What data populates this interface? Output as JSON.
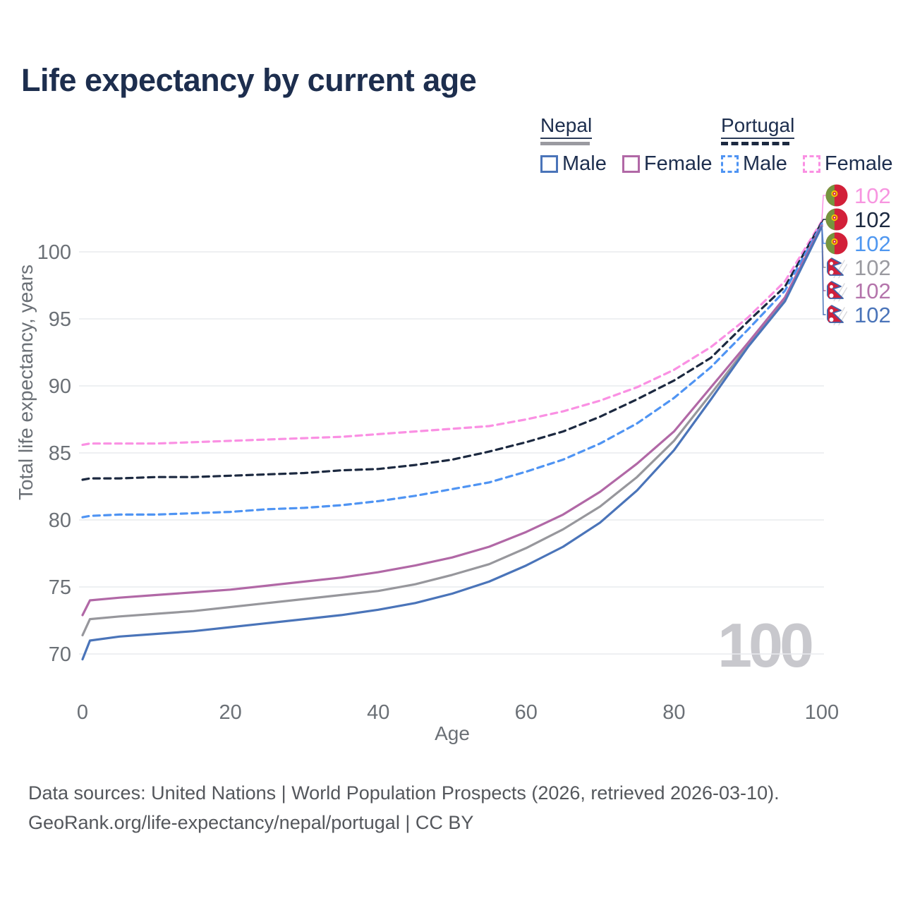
{
  "title": "Life expectancy by current age",
  "legend": {
    "groups": [
      {
        "country": "Nepal",
        "line_style": "solid",
        "swatch_color": "#9a9aa0",
        "male_label": "Male",
        "male_color": "#4a74b9",
        "female_label": "Female",
        "female_color": "#b168a6"
      },
      {
        "country": "Portugal",
        "line_style": "dashed",
        "swatch_color": "#1c2940",
        "male_label": "Male",
        "male_color": "#4f94f3",
        "female_label": "Female",
        "female_color": "#fa90e3"
      }
    ]
  },
  "chart_data": {
    "type": "line",
    "title": "Life expectancy by current age",
    "xlabel": "Age",
    "ylabel": "Total life expectancy, years",
    "x_ticks": [
      0,
      20,
      40,
      60,
      80,
      100
    ],
    "y_ticks": [
      70,
      75,
      80,
      85,
      90,
      95,
      100
    ],
    "xlim": [
      0,
      100
    ],
    "ylim": [
      66,
      103.5
    ],
    "grid": "horizontal",
    "watermark_current_age": "100",
    "axis_text_color": "#6b7076",
    "grid_color": "#e9ebee",
    "watermark_color": "#c8c8cd",
    "series": [
      {
        "name": "Portugal Female",
        "country": "Portugal",
        "sex": "Female",
        "style": "dashed",
        "color": "#fa90e3",
        "label_color": "#f795e0",
        "end_label": "102",
        "flag": "portugal",
        "points": [
          [
            0,
            85.6
          ],
          [
            1,
            85.7
          ],
          [
            5,
            85.7
          ],
          [
            10,
            85.7
          ],
          [
            15,
            85.8
          ],
          [
            20,
            85.9
          ],
          [
            25,
            86.0
          ],
          [
            30,
            86.1
          ],
          [
            35,
            86.2
          ],
          [
            40,
            86.4
          ],
          [
            45,
            86.6
          ],
          [
            50,
            86.8
          ],
          [
            55,
            87.0
          ],
          [
            60,
            87.5
          ],
          [
            65,
            88.1
          ],
          [
            70,
            88.9
          ],
          [
            75,
            89.9
          ],
          [
            80,
            91.2
          ],
          [
            85,
            92.9
          ],
          [
            90,
            95.1
          ],
          [
            95,
            97.8
          ],
          [
            100,
            102.3
          ]
        ]
      },
      {
        "name": "Portugal Both sexes",
        "country": "Portugal",
        "sex": "Both",
        "style": "dashed",
        "color": "#1c2940",
        "label_color": "#1c2940",
        "end_label": "102",
        "flag": "portugal",
        "points": [
          [
            0,
            83.0
          ],
          [
            1,
            83.1
          ],
          [
            5,
            83.1
          ],
          [
            10,
            83.2
          ],
          [
            15,
            83.2
          ],
          [
            20,
            83.3
          ],
          [
            25,
            83.4
          ],
          [
            30,
            83.5
          ],
          [
            35,
            83.7
          ],
          [
            40,
            83.8
          ],
          [
            45,
            84.1
          ],
          [
            50,
            84.5
          ],
          [
            55,
            85.1
          ],
          [
            60,
            85.8
          ],
          [
            65,
            86.6
          ],
          [
            70,
            87.7
          ],
          [
            75,
            89.0
          ],
          [
            80,
            90.4
          ],
          [
            85,
            92.1
          ],
          [
            90,
            94.8
          ],
          [
            95,
            97.4
          ],
          [
            100,
            102.2
          ]
        ]
      },
      {
        "name": "Portugal Male",
        "country": "Portugal",
        "sex": "Male",
        "style": "dashed",
        "color": "#4f94f3",
        "label_color": "#4f97f0",
        "end_label": "102",
        "flag": "portugal",
        "points": [
          [
            0,
            80.2
          ],
          [
            1,
            80.3
          ],
          [
            5,
            80.4
          ],
          [
            10,
            80.4
          ],
          [
            15,
            80.5
          ],
          [
            20,
            80.6
          ],
          [
            25,
            80.8
          ],
          [
            30,
            80.9
          ],
          [
            35,
            81.1
          ],
          [
            40,
            81.4
          ],
          [
            45,
            81.8
          ],
          [
            50,
            82.3
          ],
          [
            55,
            82.8
          ],
          [
            60,
            83.6
          ],
          [
            65,
            84.5
          ],
          [
            70,
            85.7
          ],
          [
            75,
            87.2
          ],
          [
            80,
            89.1
          ],
          [
            85,
            91.4
          ],
          [
            90,
            94.2
          ],
          [
            95,
            97.1
          ],
          [
            100,
            102.1
          ]
        ]
      },
      {
        "name": "Nepal Both sexes",
        "country": "Nepal",
        "sex": "Both",
        "style": "solid",
        "color": "#97979c",
        "label_color": "#9a9aa0",
        "end_label": "102",
        "flag": "nepal",
        "points": [
          [
            0,
            71.4
          ],
          [
            1,
            72.6
          ],
          [
            5,
            72.8
          ],
          [
            10,
            73.0
          ],
          [
            15,
            73.2
          ],
          [
            20,
            73.5
          ],
          [
            25,
            73.8
          ],
          [
            30,
            74.1
          ],
          [
            35,
            74.4
          ],
          [
            40,
            74.7
          ],
          [
            45,
            75.2
          ],
          [
            50,
            75.9
          ],
          [
            55,
            76.7
          ],
          [
            60,
            77.9
          ],
          [
            65,
            79.3
          ],
          [
            70,
            81.0
          ],
          [
            75,
            83.2
          ],
          [
            80,
            85.9
          ],
          [
            85,
            89.4
          ],
          [
            90,
            93.0
          ],
          [
            95,
            96.4
          ],
          [
            100,
            102.0
          ]
        ]
      },
      {
        "name": "Nepal Female",
        "country": "Nepal",
        "sex": "Female",
        "style": "solid",
        "color": "#b168a6",
        "label_color": "#b474ab",
        "end_label": "102",
        "flag": "nepal",
        "points": [
          [
            0,
            72.9
          ],
          [
            1,
            74.0
          ],
          [
            5,
            74.2
          ],
          [
            10,
            74.4
          ],
          [
            15,
            74.6
          ],
          [
            20,
            74.8
          ],
          [
            25,
            75.1
          ],
          [
            30,
            75.4
          ],
          [
            35,
            75.7
          ],
          [
            40,
            76.1
          ],
          [
            45,
            76.6
          ],
          [
            50,
            77.2
          ],
          [
            55,
            78.0
          ],
          [
            60,
            79.1
          ],
          [
            65,
            80.4
          ],
          [
            70,
            82.1
          ],
          [
            75,
            84.2
          ],
          [
            80,
            86.6
          ],
          [
            85,
            89.9
          ],
          [
            90,
            93.2
          ],
          [
            95,
            96.6
          ],
          [
            100,
            102.0
          ]
        ]
      },
      {
        "name": "Nepal Male",
        "country": "Nepal",
        "sex": "Male",
        "style": "solid",
        "color": "#4a74b9",
        "label_color": "#4a74b9",
        "end_label": "102",
        "flag": "nepal",
        "points": [
          [
            0,
            69.6
          ],
          [
            1,
            71.0
          ],
          [
            5,
            71.3
          ],
          [
            10,
            71.5
          ],
          [
            15,
            71.7
          ],
          [
            20,
            72.0
          ],
          [
            25,
            72.3
          ],
          [
            30,
            72.6
          ],
          [
            35,
            72.9
          ],
          [
            40,
            73.3
          ],
          [
            45,
            73.8
          ],
          [
            50,
            74.5
          ],
          [
            55,
            75.4
          ],
          [
            60,
            76.6
          ],
          [
            65,
            78.0
          ],
          [
            70,
            79.8
          ],
          [
            75,
            82.2
          ],
          [
            80,
            85.2
          ],
          [
            85,
            89.0
          ],
          [
            90,
            92.9
          ],
          [
            95,
            96.3
          ],
          [
            100,
            101.9
          ]
        ]
      }
    ]
  },
  "footer": {
    "line1": "Data sources: United Nations | World Population Prospects (2026, retrieved 2026-03-10).",
    "line2": "GeoRank.org/life-expectancy/nepal/portugal | CC BY"
  }
}
